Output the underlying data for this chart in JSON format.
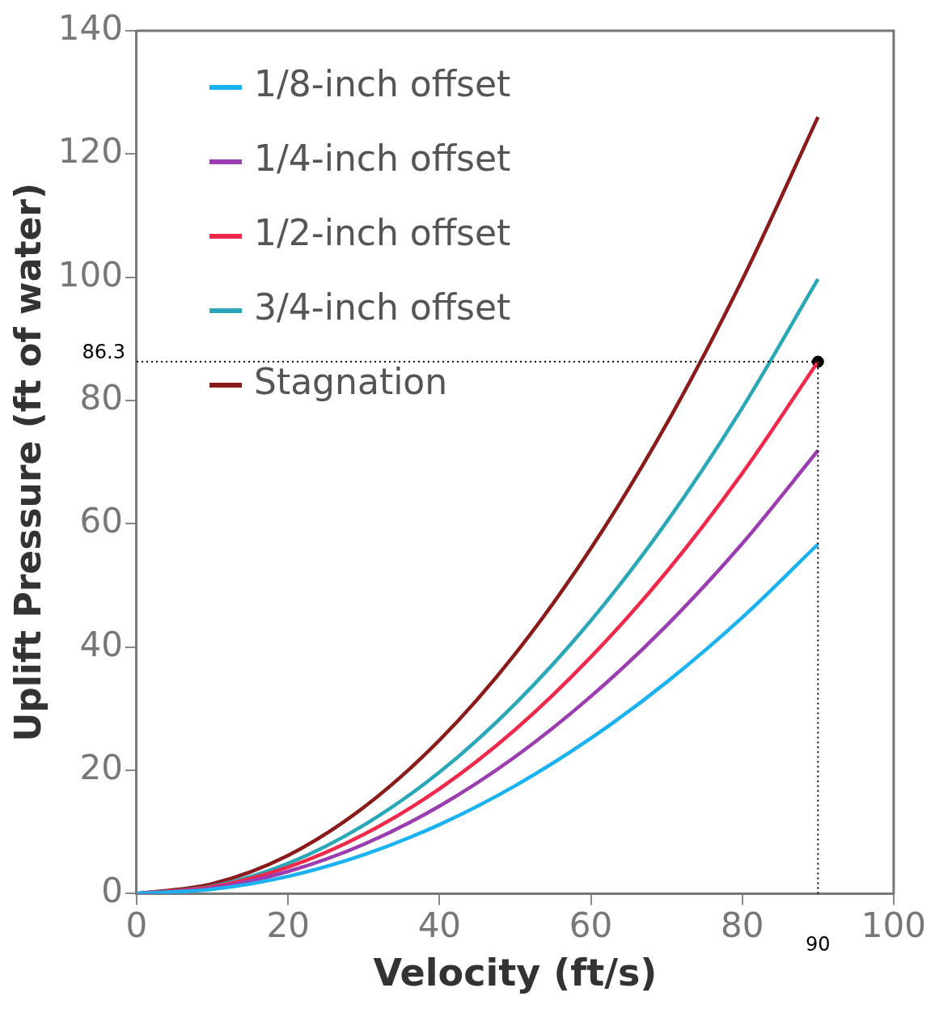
{
  "chart_data": {
    "type": "line",
    "xlabel": "Velocity (ft/s)",
    "ylabel": "Uplift Pressure (ft of water)",
    "x": [
      0,
      10,
      20,
      30,
      40,
      50,
      60,
      70,
      80,
      90
    ],
    "xlim": [
      0,
      100
    ],
    "xticks": [
      0,
      20,
      40,
      60,
      80,
      100
    ],
    "ylim": [
      0,
      140
    ],
    "yticks": [
      0,
      20,
      40,
      60,
      80,
      100,
      120,
      140
    ],
    "grid": false,
    "legend": "top left",
    "marker": "none",
    "line_style": "solid",
    "series": [
      {
        "name": "1/8-inch offset",
        "color": "#1ab2f0",
        "values": [
          0,
          0.7,
          2.8,
          6.3,
          11.2,
          17.5,
          25.2,
          34.3,
          44.8,
          56.7
        ]
      },
      {
        "name": "1/4-inch offset",
        "color": "#9b3db0",
        "values": [
          0,
          0.9,
          3.6,
          8,
          14.2,
          22.2,
          32,
          43.5,
          56.8,
          71.9
        ]
      },
      {
        "name": "1/2-inch offset",
        "color": "#f0284a",
        "values": [
          0,
          1.1,
          4.3,
          9.6,
          17,
          26.6,
          38.4,
          52.2,
          68.2,
          86.3
        ]
      },
      {
        "name": "3/4-inch offset",
        "color": "#2aa8b8",
        "values": [
          0,
          1.2,
          4.9,
          11.1,
          19.7,
          30.8,
          44.3,
          60.3,
          78.8,
          99.7
        ]
      },
      {
        "name": "Stagnation",
        "color": "#8b1a1a",
        "values": [
          0,
          1.6,
          6.2,
          14,
          24.9,
          38.9,
          56,
          76.2,
          99.6,
          126
        ]
      },
      {
        "type": "scatter",
        "color": "#000000",
        "x": [
          90
        ],
        "values": [
          86.3
        ],
        "marker": "circle"
      }
    ],
    "ref_lines": [
      {
        "axis": "y",
        "value": 86.3,
        "label": "86.3",
        "line_style": "dotted",
        "color": "#000000"
      },
      {
        "axis": "x",
        "value": 90,
        "label": "90",
        "line_style": "dotted",
        "color": "#000000"
      }
    ]
  }
}
